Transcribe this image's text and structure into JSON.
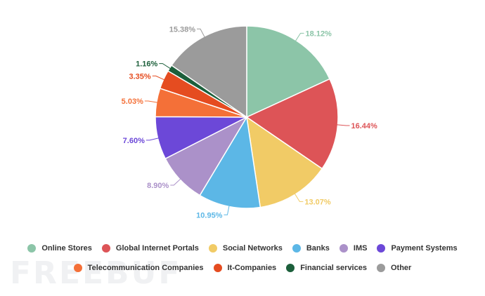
{
  "watermark": "FREEBUF",
  "chart_data": {
    "type": "pie",
    "title": "",
    "slices": [
      {
        "name": "Online Stores",
        "value": 18.12,
        "label": "18.12%",
        "color": "#8cc5a8"
      },
      {
        "name": "Global Internet Portals",
        "value": 16.44,
        "label": "16.44%",
        "color": "#dd5457"
      },
      {
        "name": "Social Networks",
        "value": 13.07,
        "label": "13.07%",
        "color": "#f1cb66"
      },
      {
        "name": "Banks",
        "value": 10.95,
        "label": "10.95%",
        "color": "#5cb7e6"
      },
      {
        "name": "IMS",
        "value": 8.9,
        "label": "8.90%",
        "color": "#ab91c9"
      },
      {
        "name": "Payment Systems",
        "value": 7.6,
        "label": "7.60%",
        "color": "#6c48d8"
      },
      {
        "name": "Telecommunication Companies",
        "value": 5.03,
        "label": "5.03%",
        "color": "#f47038"
      },
      {
        "name": "It-Companies",
        "value": 3.35,
        "label": "3.35%",
        "color": "#e54c20"
      },
      {
        "name": "Financial services",
        "value": 1.16,
        "label": "1.16%",
        "color": "#1c5f3b"
      },
      {
        "name": "Other",
        "value": 15.38,
        "label": "15.38%",
        "color": "#9b9b9b"
      }
    ],
    "legend_placement": "bottom"
  }
}
